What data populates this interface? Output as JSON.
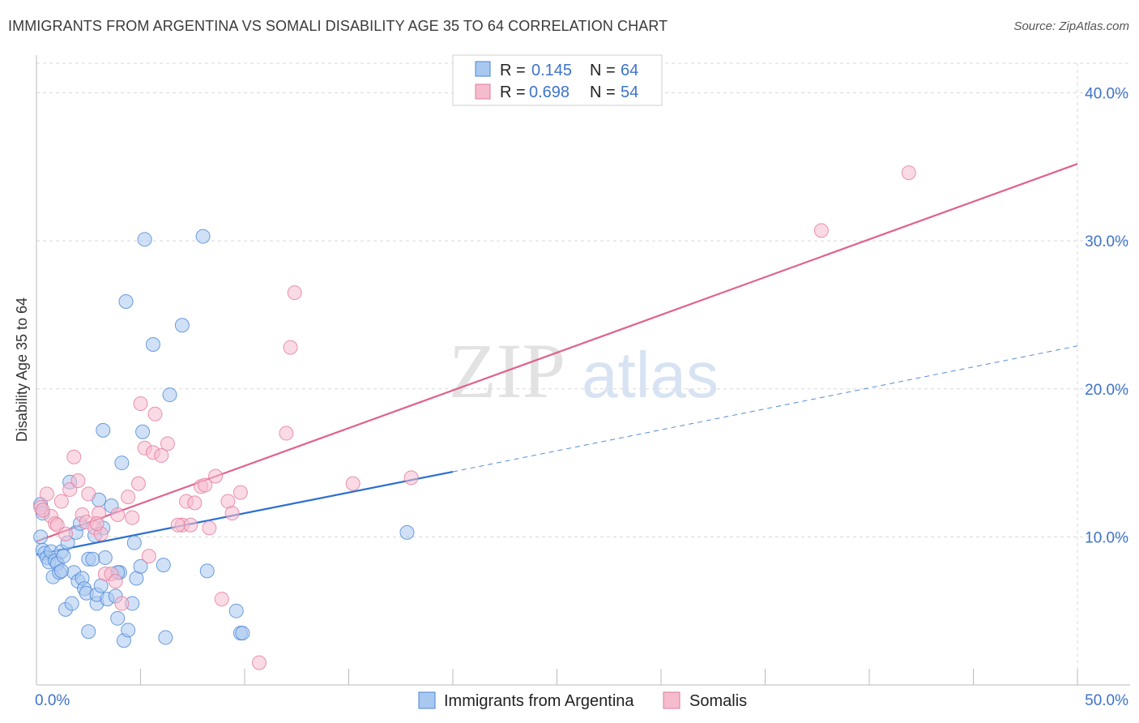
{
  "title": "IMMIGRANTS FROM ARGENTINA VS SOMALI DISABILITY AGE 35 TO 64 CORRELATION CHART",
  "source": "Source: ZipAtlas.com",
  "watermark": {
    "zip": "ZIP",
    "atlas": "atlas"
  },
  "legend": {
    "rows": [
      {
        "r_label": "R =",
        "r_value": "0.145",
        "n_label": "N =",
        "n_value": "64"
      },
      {
        "r_label": "R =",
        "r_value": "0.698",
        "n_label": "N =",
        "n_value": "54"
      }
    ]
  },
  "bottom_legend": [
    "Immigrants from Argentina",
    "Somalis"
  ],
  "colors": {
    "blue_fill": "#a9c8f0",
    "blue_stroke": "#4a86d6",
    "blue_line": "#2a6fd0",
    "pink_fill": "#f5bccd",
    "pink_stroke": "#e27a9c",
    "pink_line": "#e0628b",
    "grid": "#d8d8d8",
    "tick_text": "#3d73c9"
  },
  "chart_data": {
    "type": "scatter",
    "title": "IMMIGRANTS FROM ARGENTINA VS SOMALI DISABILITY AGE 35 TO 64 CORRELATION CHART",
    "xlabel": "",
    "ylabel": "Disability Age 35 to 64",
    "xlim": [
      0,
      50
    ],
    "ylim": [
      0,
      42
    ],
    "x_tick_labels": [
      "0.0%",
      "50.0%"
    ],
    "y_ticks": [
      10,
      20,
      30,
      40
    ],
    "y_tick_labels": [
      "10.0%",
      "20.0%",
      "30.0%",
      "40.0%"
    ],
    "grid": true,
    "legend_position": "top-center",
    "series": [
      {
        "name": "Immigrants from Argentina",
        "color": "blue",
        "trend": {
          "x0": 0,
          "y0": 8.8,
          "x1": 20,
          "y1": 14.4,
          "dash_to_x": 50,
          "dash_to_y": 22.9
        },
        "points": [
          [
            0.2,
            12.2
          ],
          [
            0.3,
            11.6
          ],
          [
            0.2,
            10.0
          ],
          [
            0.3,
            9.1
          ],
          [
            0.4,
            8.9
          ],
          [
            0.5,
            8.6
          ],
          [
            0.6,
            8.3
          ],
          [
            0.7,
            9.0
          ],
          [
            0.8,
            7.3
          ],
          [
            0.9,
            8.4
          ],
          [
            1.0,
            8.2
          ],
          [
            1.1,
            7.6
          ],
          [
            1.2,
            9.0
          ],
          [
            1.3,
            8.7
          ],
          [
            1.4,
            5.1
          ],
          [
            1.5,
            9.6
          ],
          [
            1.6,
            13.7
          ],
          [
            1.7,
            5.5
          ],
          [
            1.8,
            7.6
          ],
          [
            1.9,
            10.3
          ],
          [
            2.0,
            7.0
          ],
          [
            2.1,
            10.9
          ],
          [
            2.2,
            7.2
          ],
          [
            2.3,
            6.5
          ],
          [
            2.4,
            6.2
          ],
          [
            2.5,
            3.6
          ],
          [
            2.5,
            8.5
          ],
          [
            2.8,
            10.1
          ],
          [
            2.9,
            5.5
          ],
          [
            2.9,
            6.1
          ],
          [
            3.0,
            12.5
          ],
          [
            3.1,
            6.7
          ],
          [
            3.2,
            10.6
          ],
          [
            3.2,
            17.2
          ],
          [
            3.3,
            8.6
          ],
          [
            3.4,
            5.8
          ],
          [
            3.6,
            12.1
          ],
          [
            3.8,
            6.0
          ],
          [
            3.9,
            4.5
          ],
          [
            4.0,
            7.6
          ],
          [
            4.1,
            15.0
          ],
          [
            4.2,
            3.0
          ],
          [
            4.3,
            25.9
          ],
          [
            4.4,
            3.7
          ],
          [
            4.6,
            5.5
          ],
          [
            4.7,
            9.6
          ],
          [
            4.8,
            7.2
          ],
          [
            5.0,
            8.0
          ],
          [
            5.1,
            17.1
          ],
          [
            5.2,
            30.1
          ],
          [
            5.6,
            23.0
          ],
          [
            6.2,
            3.2
          ],
          [
            6.4,
            19.6
          ],
          [
            6.1,
            8.1
          ],
          [
            7.0,
            24.3
          ],
          [
            8.0,
            30.3
          ],
          [
            8.2,
            7.7
          ],
          [
            9.6,
            5.0
          ],
          [
            9.8,
            3.5
          ],
          [
            9.9,
            3.5
          ],
          [
            17.8,
            10.3
          ],
          [
            3.9,
            7.6
          ],
          [
            2.7,
            8.5
          ],
          [
            1.2,
            7.7
          ]
        ]
      },
      {
        "name": "Somalis",
        "color": "pink",
        "trend": {
          "x0": 0,
          "y0": 9.7,
          "x1": 50,
          "y1": 35.2
        },
        "points": [
          [
            0.2,
            12.0
          ],
          [
            0.5,
            12.9
          ],
          [
            0.7,
            11.4
          ],
          [
            0.9,
            10.9
          ],
          [
            1.0,
            10.8
          ],
          [
            1.2,
            12.4
          ],
          [
            1.4,
            10.2
          ],
          [
            1.6,
            13.2
          ],
          [
            1.8,
            15.4
          ],
          [
            2.0,
            13.8
          ],
          [
            2.2,
            11.5
          ],
          [
            2.4,
            11.0
          ],
          [
            2.5,
            12.9
          ],
          [
            2.8,
            10.6
          ],
          [
            3.0,
            11.6
          ],
          [
            3.1,
            10.2
          ],
          [
            3.3,
            7.5
          ],
          [
            3.6,
            7.5
          ],
          [
            3.8,
            7.0
          ],
          [
            3.9,
            11.5
          ],
          [
            4.1,
            5.5
          ],
          [
            4.4,
            12.7
          ],
          [
            4.6,
            11.3
          ],
          [
            4.9,
            13.6
          ],
          [
            5.0,
            19.0
          ],
          [
            5.2,
            16.0
          ],
          [
            5.4,
            8.7
          ],
          [
            5.6,
            15.7
          ],
          [
            5.7,
            18.3
          ],
          [
            6.0,
            15.5
          ],
          [
            6.3,
            16.3
          ],
          [
            7.0,
            10.8
          ],
          [
            7.2,
            12.4
          ],
          [
            7.4,
            10.8
          ],
          [
            7.6,
            12.3
          ],
          [
            7.9,
            13.4
          ],
          [
            8.1,
            13.5
          ],
          [
            8.3,
            10.6
          ],
          [
            8.6,
            14.1
          ],
          [
            8.9,
            5.8
          ],
          [
            9.2,
            12.4
          ],
          [
            9.4,
            11.6
          ],
          [
            9.8,
            13.0
          ],
          [
            10.7,
            1.5
          ],
          [
            12.0,
            17.0
          ],
          [
            12.2,
            22.8
          ],
          [
            12.4,
            26.5
          ],
          [
            15.2,
            13.6
          ],
          [
            18.0,
            14.0
          ],
          [
            37.7,
            30.7
          ],
          [
            41.9,
            34.6
          ],
          [
            0.3,
            11.8
          ],
          [
            2.9,
            10.9
          ],
          [
            6.8,
            10.8
          ]
        ]
      }
    ]
  }
}
